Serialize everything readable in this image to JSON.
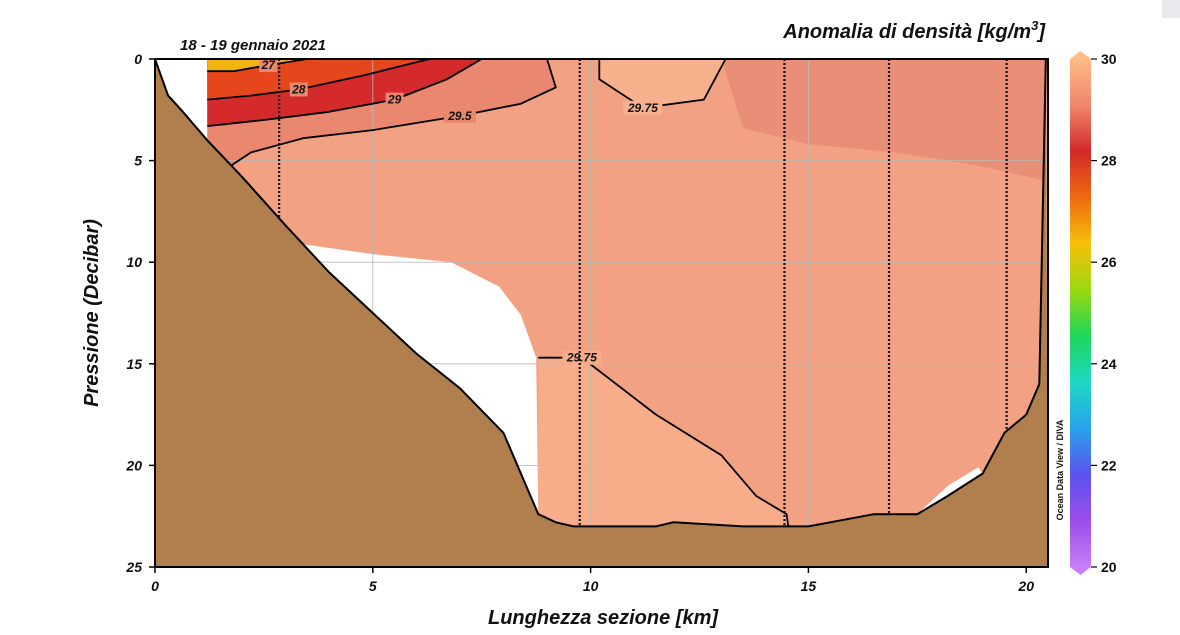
{
  "chart_data": {
    "type": "heatmap",
    "title": "Anomalia di densità [kg/m³]",
    "title_main": "Anomalia di densità [kg/m",
    "title_sup": "3",
    "title_end": "]",
    "subtitle": "18 - 19 gennaio 2021",
    "xlabel": "Lunghezza sezione [km]",
    "ylabel": "Pressione (Decibar)",
    "xlim": [
      0,
      20.5
    ],
    "ylim": [
      0,
      25
    ],
    "y_inverted": true,
    "x_ticks": [
      "0",
      "5",
      "10",
      "15",
      "20"
    ],
    "y_ticks": [
      "0",
      "5",
      "10",
      "15",
      "20",
      "25"
    ],
    "colorbar": {
      "range": [
        20,
        30
      ],
      "ticks": [
        "30",
        "28",
        "26",
        "24",
        "22",
        "20"
      ],
      "colors": [
        "#ffbb88",
        "#f0866e",
        "#d22a2a",
        "#ee6a10",
        "#f6c00c",
        "#9ad810",
        "#1ed65a",
        "#1ed8c4",
        "#2aa2ea",
        "#5a52ee",
        "#9b4ee8",
        "#c77ef7"
      ]
    },
    "credit": "Ocean Data View / DIVA",
    "stations_km": [
      2.85,
      9.75,
      14.45,
      16.85,
      19.55
    ],
    "contours": [
      {
        "label": "27",
        "points": [
          [
            1.2,
            0.6
          ],
          [
            1.8,
            0.6
          ],
          [
            2.6,
            0.3
          ],
          [
            3.5,
            0.0
          ]
        ]
      },
      {
        "label": "28",
        "points": [
          [
            1.2,
            2.0
          ],
          [
            2.2,
            1.8
          ],
          [
            3.3,
            1.5
          ],
          [
            4.8,
            0.8
          ],
          [
            6.3,
            0.0
          ]
        ]
      },
      {
        "label": "29",
        "points": [
          [
            1.2,
            3.3
          ],
          [
            2.5,
            3.0
          ],
          [
            4.0,
            2.6
          ],
          [
            5.5,
            2.0
          ],
          [
            6.7,
            1.0
          ],
          [
            7.5,
            0.0
          ]
        ]
      },
      {
        "label": "29.5",
        "points": [
          [
            1.5,
            5.6
          ],
          [
            2.2,
            4.6
          ],
          [
            3.4,
            3.9
          ],
          [
            5.0,
            3.5
          ],
          [
            7.0,
            2.8
          ],
          [
            8.4,
            2.2
          ],
          [
            9.2,
            1.4
          ],
          [
            9.0,
            0.0
          ]
        ]
      },
      {
        "label": "29.75",
        "points": [
          [
            10.2,
            0.0
          ],
          [
            10.2,
            1.0
          ],
          [
            11.2,
            2.4
          ],
          [
            12.6,
            2.0
          ],
          [
            13.1,
            0.0
          ]
        ]
      },
      {
        "label": "29.75",
        "points": [
          [
            8.8,
            14.7
          ],
          [
            9.8,
            14.7
          ],
          [
            11.5,
            17.5
          ],
          [
            13.0,
            19.5
          ],
          [
            13.8,
            21.5
          ],
          [
            14.5,
            22.4
          ],
          [
            14.55,
            23.2
          ]
        ]
      }
    ],
    "bathymetry": [
      [
        0,
        0
      ],
      [
        0.3,
        1.8
      ],
      [
        0.6,
        2.5
      ],
      [
        1.2,
        4.0
      ],
      [
        2.0,
        5.8
      ],
      [
        3.0,
        8.2
      ],
      [
        4.0,
        10.5
      ],
      [
        5.0,
        12.5
      ],
      [
        6.0,
        14.5
      ],
      [
        7.0,
        16.2
      ],
      [
        8.0,
        18.4
      ],
      [
        8.8,
        22.4
      ],
      [
        9.2,
        22.8
      ],
      [
        9.6,
        23.0
      ],
      [
        11.5,
        23.0
      ],
      [
        11.9,
        22.8
      ],
      [
        13.5,
        23.0
      ],
      [
        15.0,
        23.0
      ],
      [
        15.5,
        22.8
      ],
      [
        16.5,
        22.4
      ],
      [
        17.5,
        22.4
      ],
      [
        18.2,
        21.5
      ],
      [
        19.0,
        20.4
      ],
      [
        19.5,
        18.4
      ],
      [
        20.0,
        17.5
      ],
      [
        20.3,
        16.0
      ],
      [
        20.45,
        0.0
      ]
    ]
  }
}
